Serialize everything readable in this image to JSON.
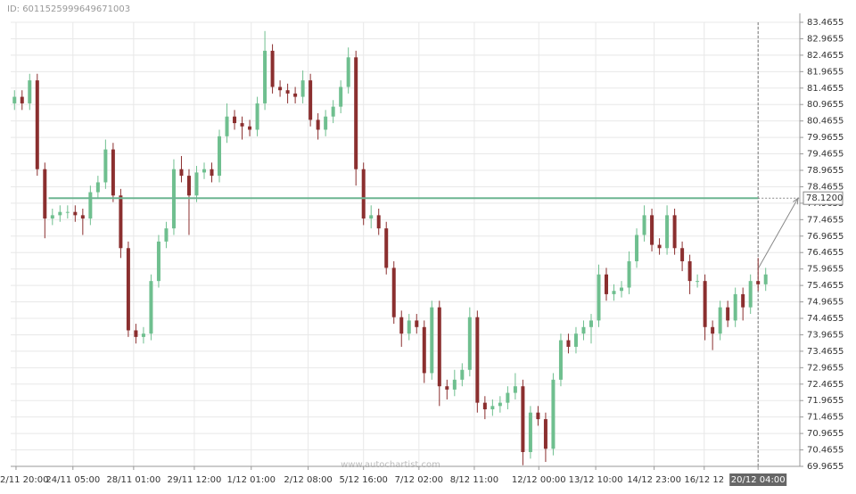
{
  "chart_data": {
    "type": "candlestick",
    "id_label": "ID: 6011525999649671003",
    "watermark": "www.autochartist.com",
    "up_color": "#6fbf8f",
    "down_color": "#8b2f2f",
    "grid": true,
    "x": [
      0,
      1,
      2,
      3,
      4,
      5,
      6,
      7,
      8,
      9,
      10,
      11,
      12,
      13,
      14,
      15,
      16,
      17,
      18,
      19,
      20,
      21,
      22,
      23,
      24,
      25,
      26,
      27,
      28,
      29,
      30,
      31,
      32,
      33,
      34,
      35,
      36,
      37,
      38,
      39,
      40,
      41,
      42,
      43,
      44,
      45,
      46,
      47,
      48,
      49,
      50,
      51,
      52,
      53,
      54,
      55,
      56,
      57,
      58,
      59,
      60,
      61,
      62,
      63,
      64,
      65,
      66,
      67,
      68,
      69,
      70,
      71,
      72,
      73,
      74,
      75,
      76,
      77,
      78,
      79,
      80,
      81,
      82,
      83,
      84,
      85,
      86,
      87,
      88,
      89,
      90,
      91,
      92,
      93,
      94,
      95,
      96,
      97,
      98,
      99
    ],
    "open": [
      81.0,
      81.2,
      81.0,
      81.7,
      79.0,
      77.5,
      77.6,
      77.7,
      77.7,
      77.6,
      77.5,
      78.3,
      78.6,
      79.6,
      78.2,
      76.6,
      74.1,
      73.9,
      74.0,
      75.6,
      76.8,
      77.2,
      79.0,
      78.8,
      78.2,
      78.9,
      79.0,
      78.8,
      80.0,
      80.6,
      80.4,
      80.3,
      80.2,
      81.0,
      82.6,
      81.5,
      81.4,
      81.3,
      81.2,
      81.7,
      80.5,
      80.2,
      80.6,
      80.9,
      81.5,
      82.4,
      79.0,
      77.5,
      77.6,
      77.2,
      76.0,
      74.5,
      74.0,
      74.4,
      74.2,
      72.8,
      74.8,
      72.4,
      72.3,
      72.6,
      72.9,
      74.5,
      71.9,
      71.7,
      71.8,
      71.9,
      72.2,
      72.4,
      70.4,
      71.6,
      71.4,
      70.5,
      72.6,
      73.8,
      73.6,
      74.0,
      74.2,
      74.4,
      75.8,
      75.2,
      75.3,
      75.4,
      76.2,
      77.0,
      77.6,
      76.7,
      76.6,
      77.6,
      76.6,
      76.2,
      75.6,
      75.6,
      74.2,
      74.0,
      74.8,
      74.4,
      75.2,
      74.8,
      75.6,
      75.5
    ],
    "high": [
      81.4,
      81.4,
      81.9,
      81.9,
      79.2,
      77.8,
      77.9,
      77.9,
      77.9,
      77.8,
      78.5,
      78.8,
      79.9,
      79.8,
      78.4,
      76.8,
      74.3,
      74.2,
      75.8,
      77.0,
      77.4,
      79.3,
      79.4,
      79.0,
      79.1,
      79.2,
      79.2,
      80.2,
      81.0,
      80.8,
      80.6,
      80.5,
      81.2,
      83.2,
      82.8,
      81.7,
      81.6,
      81.5,
      82.0,
      81.9,
      80.7,
      80.8,
      81.1,
      81.7,
      82.7,
      82.6,
      79.2,
      77.9,
      77.8,
      77.4,
      76.2,
      74.7,
      74.6,
      74.6,
      74.4,
      75.0,
      75.0,
      72.6,
      72.9,
      73.1,
      74.8,
      74.7,
      72.1,
      72.0,
      72.1,
      72.4,
      72.8,
      72.6,
      71.8,
      71.8,
      71.6,
      72.8,
      74.0,
      74.0,
      74.2,
      74.4,
      74.6,
      76.1,
      76.0,
      75.5,
      75.6,
      76.5,
      77.2,
      77.9,
      77.8,
      76.9,
      77.9,
      77.8,
      76.8,
      76.4,
      75.8,
      75.8,
      74.4,
      75.0,
      75.0,
      75.4,
      75.4,
      75.8,
      76.3,
      76.0
    ],
    "low": [
      80.8,
      80.8,
      80.8,
      78.8,
      76.9,
      77.3,
      77.4,
      77.5,
      77.4,
      77.0,
      77.3,
      78.1,
      78.4,
      78.0,
      76.3,
      73.9,
      73.7,
      73.7,
      73.8,
      75.4,
      76.6,
      77.0,
      78.6,
      77.0,
      78.0,
      78.7,
      78.6,
      78.6,
      79.8,
      80.2,
      79.9,
      80.0,
      80.0,
      80.8,
      81.3,
      81.2,
      81.0,
      81.0,
      81.0,
      80.3,
      79.9,
      80.0,
      80.4,
      80.7,
      81.3,
      78.5,
      77.3,
      77.2,
      77.0,
      75.8,
      74.3,
      73.6,
      73.8,
      74.0,
      72.5,
      72.6,
      71.8,
      72.0,
      72.1,
      72.4,
      72.7,
      71.6,
      71.4,
      71.5,
      71.6,
      71.7,
      72.0,
      70.0,
      70.2,
      71.2,
      70.1,
      70.3,
      72.4,
      73.4,
      73.4,
      73.8,
      73.7,
      74.2,
      75.0,
      75.0,
      75.1,
      75.2,
      76.0,
      76.8,
      76.5,
      76.4,
      76.4,
      76.4,
      75.9,
      75.2,
      75.4,
      73.8,
      73.5,
      73.8,
      74.2,
      74.2,
      74.4,
      74.6,
      75.3,
      75.3
    ],
    "close": [
      81.2,
      81.0,
      81.7,
      79.0,
      77.5,
      77.6,
      77.7,
      77.7,
      77.6,
      77.5,
      78.3,
      78.6,
      79.6,
      78.2,
      76.6,
      74.1,
      73.9,
      74.0,
      75.6,
      76.8,
      77.2,
      79.0,
      78.8,
      78.2,
      78.9,
      79.0,
      78.8,
      80.0,
      80.6,
      80.4,
      80.3,
      80.2,
      81.0,
      82.6,
      81.5,
      81.4,
      81.3,
      81.2,
      81.7,
      80.5,
      80.2,
      80.6,
      80.9,
      81.5,
      82.4,
      79.0,
      77.5,
      77.6,
      77.2,
      76.0,
      74.5,
      74.0,
      74.4,
      74.2,
      72.8,
      74.8,
      72.4,
      72.3,
      72.6,
      72.9,
      74.5,
      71.9,
      71.7,
      71.8,
      71.9,
      72.2,
      72.4,
      70.4,
      71.6,
      71.4,
      70.5,
      72.6,
      73.8,
      73.6,
      74.0,
      74.2,
      74.4,
      75.8,
      75.2,
      75.3,
      75.4,
      76.2,
      77.0,
      77.6,
      76.7,
      76.6,
      77.6,
      76.6,
      76.2,
      75.6,
      75.6,
      74.2,
      74.0,
      74.8,
      74.4,
      75.2,
      74.8,
      75.6,
      75.5,
      75.8
    ],
    "level": 78.12,
    "level_label": "78.1200",
    "level_color": "#6db592",
    "level_x": [
      4.5,
      98
    ],
    "xlim": [
      -0.5,
      103.5
    ],
    "xticks": [
      {
        "value": 0.2,
        "label": "2/11 20:00"
      },
      {
        "value": 7.7,
        "label": "24/11 05:00"
      },
      {
        "value": 15.7,
        "label": "28/11 01:00"
      },
      {
        "value": 23.7,
        "label": "29/11 12:00"
      },
      {
        "value": 31.2,
        "label": "1/12 01:00"
      },
      {
        "value": 38.7,
        "label": "2/12 08:00"
      },
      {
        "value": 46.0,
        "label": "5/12 16:00"
      },
      {
        "value": 53.3,
        "label": "7/12 02:00"
      },
      {
        "value": 60.6,
        "label": "8/12 11:00"
      },
      {
        "value": 69.1,
        "label": "12/12 00:00"
      },
      {
        "value": 76.6,
        "label": "13/12 10:00"
      },
      {
        "value": 84.3,
        "label": "14/12 23:00"
      },
      {
        "value": 90.9,
        "label": "16/12 12"
      },
      {
        "value": 98.0,
        "label": "20/12 04:00"
      }
    ],
    "ylim": [
      69.9655,
      83.4655
    ],
    "yticks": [
      69.9655,
      70.4655,
      70.9655,
      71.4655,
      71.9655,
      72.4655,
      72.9655,
      73.4655,
      73.9655,
      74.4655,
      74.9655,
      75.4655,
      75.9655,
      76.4655,
      76.9655,
      77.4655,
      77.9655,
      78.4655,
      78.9655,
      79.4655,
      79.9655,
      80.4655,
      80.9655,
      81.4655,
      81.9655,
      82.4655,
      82.9655,
      83.4655
    ]
  }
}
